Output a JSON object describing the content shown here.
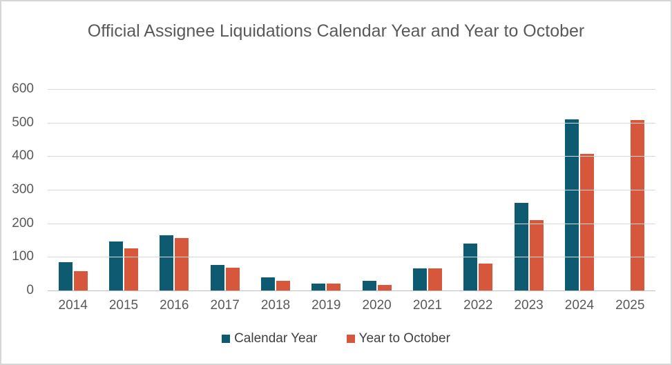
{
  "window": {
    "background": "#FFFFFF",
    "border_color": "#D6D6D6"
  },
  "chart_data": {
    "type": "bar",
    "title": "Official Assignee Liquidations Calendar Year and Year to October",
    "categories": [
      "2014",
      "2015",
      "2016",
      "2017",
      "2018",
      "2019",
      "2020",
      "2021",
      "2022",
      "2023",
      "2024",
      "2025"
    ],
    "series": [
      {
        "name": "Calendar Year",
        "color": "#0E5A70",
        "values": [
          85,
          145,
          165,
          77,
          39,
          21,
          28,
          66,
          140,
          260,
          509,
          null
        ]
      },
      {
        "name": "Year to October",
        "color": "#D6573C",
        "values": [
          58,
          126,
          156,
          67,
          28,
          21,
          16,
          66,
          80,
          210,
          407,
          507
        ]
      }
    ],
    "ylim": [
      0,
      600
    ],
    "yticks": [
      0,
      100,
      200,
      300,
      400,
      500,
      600
    ],
    "grid": true,
    "legend_position": "bottom",
    "text_color": "#595959",
    "gridline_color": "#D9D9D9",
    "axis_line_color": "#BFBFBF"
  }
}
